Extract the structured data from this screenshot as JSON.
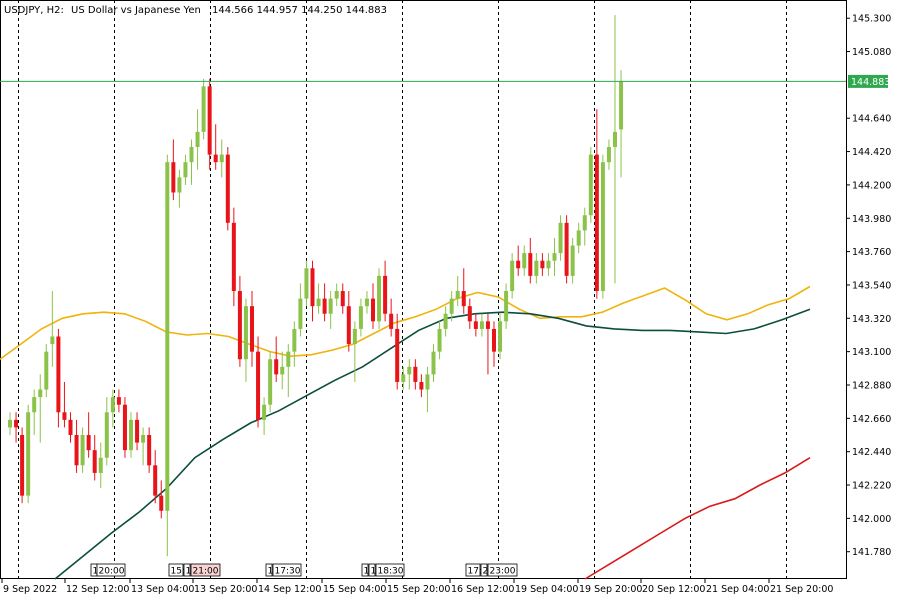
{
  "header": {
    "symbol": "USDJPY, H2:",
    "description": "US Dollar vs Japanese Yen",
    "ohlc": "144.566 144.957 144.250 144.883"
  },
  "current_price": {
    "label": "144.883",
    "value": 144.883,
    "line_color": "#2fa84f",
    "badge_color": "#2fa84f"
  },
  "colors": {
    "bull": "#8bc34a",
    "bear": "#e8141a",
    "ma_fast": "#f0b30a",
    "ma_mid": "#0b4d3e",
    "ma_slow": "#d81a1a",
    "grid": "#000000"
  },
  "time_labels": [
    "9 Sep 2022",
    "12 Sep 12:00",
    "13 Sep 04:00",
    "13 Sep 20:00",
    "14 Sep 12:00",
    "15 Sep 04:00",
    "15 Sep 20:00",
    "16 Sep 12:00",
    "19 Sep 04:00",
    "19 Sep 20:00",
    "20 Sep 12:00",
    "21 Sep 04:00",
    "21 Sep 20:00"
  ],
  "bookmarks": [
    {
      "label": "1"
    },
    {
      "label": "20:00"
    },
    {
      "label": "15:"
    },
    {
      "label": "1"
    },
    {
      "label": "21:00"
    },
    {
      "label": "1"
    },
    {
      "label": "17:30"
    },
    {
      "label": "1"
    },
    {
      "label": "1"
    },
    {
      "label": "18:30"
    },
    {
      "label": "17:"
    },
    {
      "label": "2"
    },
    {
      "label": "23:00"
    }
  ],
  "chart_data": {
    "type": "candlestick",
    "title": "USDJPY, H2: US Dollar vs Japanese Yen",
    "ylim": [
      141.6,
      145.42
    ],
    "y_ticks": [
      "145.300",
      "145.080",
      "144.640",
      "144.420",
      "144.200",
      "143.980",
      "143.760",
      "143.540",
      "143.320",
      "143.100",
      "142.880",
      "142.660",
      "142.440",
      "142.220",
      "142.000",
      "141.780"
    ],
    "y_tick_values": [
      145.3,
      145.08,
      144.64,
      144.42,
      144.2,
      143.98,
      143.76,
      143.54,
      143.32,
      143.1,
      142.88,
      142.66,
      142.44,
      142.22,
      142.0,
      141.78
    ],
    "candles": [
      [
        142.6,
        142.7,
        142.55,
        142.65
      ],
      [
        142.65,
        142.7,
        142.5,
        142.6
      ],
      [
        142.55,
        142.6,
        142.1,
        142.15
      ],
      [
        142.15,
        142.75,
        142.1,
        142.7
      ],
      [
        142.7,
        142.85,
        142.55,
        142.8
      ],
      [
        142.8,
        142.95,
        142.5,
        142.85
      ],
      [
        142.85,
        143.15,
        142.8,
        143.1
      ],
      [
        143.15,
        143.5,
        143.0,
        143.2
      ],
      [
        143.2,
        143.25,
        142.6,
        142.7
      ],
      [
        142.7,
        142.9,
        142.6,
        142.65
      ],
      [
        142.65,
        142.7,
        142.5,
        142.55
      ],
      [
        142.55,
        142.65,
        142.3,
        142.35
      ],
      [
        142.35,
        142.6,
        142.3,
        142.55
      ],
      [
        142.55,
        142.7,
        142.4,
        142.45
      ],
      [
        142.45,
        142.55,
        142.25,
        142.3
      ],
      [
        142.3,
        142.5,
        142.2,
        142.4
      ],
      [
        142.4,
        142.8,
        142.35,
        142.7
      ],
      [
        142.7,
        142.85,
        142.6,
        142.8
      ],
      [
        142.8,
        142.85,
        142.7,
        142.75
      ],
      [
        142.75,
        142.8,
        142.4,
        142.45
      ],
      [
        142.45,
        142.7,
        142.4,
        142.65
      ],
      [
        142.65,
        142.7,
        142.45,
        142.5
      ],
      [
        142.5,
        142.6,
        142.35,
        142.55
      ],
      [
        142.55,
        142.6,
        142.3,
        142.35
      ],
      [
        142.35,
        142.45,
        142.1,
        142.15
      ],
      [
        142.15,
        142.25,
        142.0,
        142.05
      ],
      [
        142.05,
        144.4,
        141.75,
        144.35
      ],
      [
        144.35,
        144.5,
        144.1,
        144.15
      ],
      [
        144.15,
        144.3,
        144.05,
        144.25
      ],
      [
        144.25,
        144.4,
        144.2,
        144.35
      ],
      [
        144.35,
        144.5,
        144.2,
        144.45
      ],
      [
        144.45,
        144.7,
        144.3,
        144.55
      ],
      [
        144.55,
        144.9,
        144.5,
        144.85
      ],
      [
        144.85,
        144.9,
        144.3,
        144.4
      ],
      [
        144.4,
        144.6,
        144.3,
        144.35
      ],
      [
        144.35,
        144.5,
        144.25,
        144.4
      ],
      [
        144.4,
        144.45,
        143.9,
        143.95
      ],
      [
        143.95,
        144.05,
        143.4,
        143.5
      ],
      [
        143.5,
        143.6,
        143.0,
        143.05
      ],
      [
        143.05,
        143.45,
        142.9,
        143.4
      ],
      [
        143.4,
        143.5,
        143.0,
        143.1
      ],
      [
        143.1,
        143.2,
        142.6,
        142.65
      ],
      [
        142.65,
        142.8,
        142.55,
        142.75
      ],
      [
        142.75,
        143.1,
        142.7,
        143.05
      ],
      [
        143.05,
        143.2,
        142.9,
        142.95
      ],
      [
        142.95,
        143.1,
        142.85,
        143.0
      ],
      [
        143.0,
        143.15,
        142.8,
        143.1
      ],
      [
        143.1,
        143.3,
        143.0,
        143.25
      ],
      [
        143.25,
        143.55,
        143.2,
        143.45
      ],
      [
        143.45,
        143.7,
        143.4,
        143.65
      ],
      [
        143.65,
        143.7,
        143.3,
        143.4
      ],
      [
        143.4,
        143.55,
        143.35,
        143.45
      ],
      [
        143.45,
        143.55,
        143.3,
        143.35
      ],
      [
        143.35,
        143.5,
        143.25,
        143.45
      ],
      [
        143.45,
        143.55,
        143.4,
        143.5
      ],
      [
        143.5,
        143.55,
        143.35,
        143.4
      ],
      [
        143.4,
        143.5,
        143.1,
        143.15
      ],
      [
        143.15,
        143.3,
        142.9,
        143.25
      ],
      [
        143.25,
        143.45,
        143.2,
        143.4
      ],
      [
        143.4,
        143.5,
        143.35,
        143.45
      ],
      [
        143.45,
        143.55,
        143.25,
        143.3
      ],
      [
        143.3,
        143.65,
        143.25,
        143.6
      ],
      [
        143.6,
        143.7,
        143.3,
        143.35
      ],
      [
        143.35,
        143.45,
        143.2,
        143.25
      ],
      [
        143.25,
        143.35,
        142.85,
        142.9
      ],
      [
        142.9,
        143.0,
        142.85,
        142.95
      ],
      [
        142.95,
        143.05,
        142.85,
        143.0
      ],
      [
        143.0,
        143.05,
        142.85,
        142.9
      ],
      [
        142.9,
        142.95,
        142.8,
        142.85
      ],
      [
        142.85,
        143.0,
        142.7,
        142.95
      ],
      [
        142.95,
        143.15,
        142.9,
        143.1
      ],
      [
        143.1,
        143.3,
        143.05,
        143.25
      ],
      [
        143.25,
        143.4,
        143.2,
        143.35
      ],
      [
        143.35,
        143.5,
        143.3,
        143.45
      ],
      [
        143.45,
        143.6,
        143.4,
        143.5
      ],
      [
        143.5,
        143.65,
        143.35,
        143.4
      ],
      [
        143.4,
        143.45,
        143.25,
        143.3
      ],
      [
        143.3,
        143.35,
        143.2,
        143.25
      ],
      [
        143.25,
        143.35,
        143.2,
        143.3
      ],
      [
        143.3,
        143.35,
        142.95,
        143.25
      ],
      [
        143.25,
        143.3,
        143.0,
        143.1
      ],
      [
        143.1,
        143.35,
        143.05,
        143.3
      ],
      [
        143.3,
        143.55,
        143.25,
        143.5
      ],
      [
        143.5,
        143.75,
        143.45,
        143.7
      ],
      [
        143.7,
        143.8,
        143.6,
        143.65
      ],
      [
        143.65,
        143.8,
        143.6,
        143.75
      ],
      [
        143.75,
        143.85,
        143.55,
        143.6
      ],
      [
        143.6,
        143.75,
        143.55,
        143.7
      ],
      [
        143.7,
        143.75,
        143.6,
        143.65
      ],
      [
        143.65,
        143.75,
        143.6,
        143.7
      ],
      [
        143.7,
        143.85,
        143.6,
        143.75
      ],
      [
        143.75,
        144.0,
        143.7,
        143.95
      ],
      [
        143.95,
        144.0,
        143.55,
        143.6
      ],
      [
        143.6,
        143.85,
        143.55,
        143.8
      ],
      [
        143.8,
        143.95,
        143.75,
        143.9
      ],
      [
        143.9,
        144.05,
        143.8,
        144.0
      ],
      [
        144.0,
        144.45,
        143.95,
        144.4
      ],
      [
        144.4,
        144.7,
        143.45,
        143.5
      ],
      [
        143.5,
        144.4,
        143.45,
        144.35
      ],
      [
        144.35,
        144.5,
        144.3,
        144.45
      ],
      [
        144.45,
        145.32,
        143.55,
        144.55
      ],
      [
        144.566,
        144.957,
        144.25,
        144.883
      ]
    ],
    "ma_fast": [
      143.05,
      143.15,
      143.25,
      143.32,
      143.35,
      143.36,
      143.35,
      143.3,
      143.23,
      143.21,
      143.22,
      143.2,
      143.15,
      143.1,
      143.07,
      143.08,
      143.11,
      143.15,
      143.22,
      143.29,
      143.33,
      143.38,
      143.45,
      143.49,
      143.46,
      143.38,
      143.32,
      143.33,
      143.33,
      143.36,
      143.42,
      143.47,
      143.52,
      143.44,
      143.35,
      143.31,
      143.35,
      143.41,
      143.45,
      143.53
    ],
    "ma_mid": [
      141.6,
      141.75,
      141.9,
      142.04,
      142.2,
      142.4,
      142.52,
      142.63,
      142.71,
      142.81,
      142.91,
      143.0,
      143.12,
      143.24,
      143.32,
      143.35,
      143.36,
      143.35,
      143.32,
      143.27,
      143.25,
      143.24,
      143.24,
      143.23,
      143.22,
      143.25,
      143.31,
      143.38
    ],
    "ma_slow": [
      141.6,
      141.7,
      141.8,
      141.9,
      142.0,
      142.08,
      142.13,
      142.22,
      142.3,
      142.4
    ]
  }
}
